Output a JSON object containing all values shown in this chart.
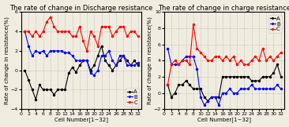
{
  "discharge": {
    "title": "The rate of change in Discharge resistance",
    "x": [
      1,
      2,
      3,
      4,
      5,
      6,
      7,
      8,
      9,
      10,
      11,
      12,
      13,
      14,
      15,
      16,
      17,
      18,
      19,
      20,
      21,
      22,
      23,
      24,
      25,
      26,
      27,
      28,
      29,
      30,
      31,
      32
    ],
    "A": [
      0.0,
      -1.0,
      -2.0,
      -3.0,
      -1.5,
      -2.0,
      -2.0,
      -2.0,
      -2.5,
      -2.0,
      -2.0,
      -2.0,
      -0.3,
      0.3,
      -0.2,
      0.5,
      1.0,
      1.0,
      0.0,
      0.5,
      1.5,
      2.5,
      1.0,
      0.5,
      0.0,
      0.5,
      1.0,
      1.5,
      1.0,
      0.5,
      1.0,
      0.5
    ],
    "B": [
      4.0,
      2.5,
      1.5,
      2.0,
      1.8,
      2.0,
      1.5,
      2.0,
      2.0,
      2.0,
      2.0,
      1.8,
      1.8,
      1.5,
      1.0,
      1.0,
      1.0,
      1.0,
      -0.3,
      -0.5,
      0.0,
      1.5,
      1.5,
      2.0,
      1.0,
      0.5,
      1.5,
      1.5,
      0.5,
      0.5,
      0.5,
      0.8
    ],
    "C": [
      4.0,
      4.0,
      3.5,
      4.0,
      3.5,
      4.0,
      5.0,
      5.5,
      4.5,
      4.0,
      4.0,
      4.0,
      4.0,
      3.5,
      3.5,
      4.5,
      3.0,
      2.0,
      4.0,
      3.5,
      2.5,
      4.5,
      4.5,
      4.5,
      3.5,
      4.0,
      4.5,
      4.5,
      3.5,
      4.0,
      4.0,
      3.5
    ],
    "ylabel": "Rate of change in resistance(%)",
    "xlabel": "Cell Number[1~32]",
    "ylim": [
      -4,
      6
    ],
    "yticks": [
      -4,
      -2,
      0,
      2,
      4,
      6
    ],
    "xticks": [
      0,
      2,
      4,
      6,
      8,
      10,
      12,
      14,
      16,
      18,
      20,
      22,
      24,
      26,
      28,
      30,
      32
    ],
    "legend_loc": "lower right"
  },
  "charge": {
    "title": "The rate of change in charge resistance",
    "x": [
      1,
      2,
      3,
      4,
      5,
      6,
      7,
      8,
      9,
      10,
      11,
      12,
      13,
      14,
      15,
      16,
      17,
      18,
      19,
      20,
      21,
      22,
      23,
      24,
      25,
      26,
      27,
      28,
      29,
      30,
      31,
      32
    ],
    "A": [
      1.0,
      -0.5,
      0.0,
      1.0,
      1.0,
      1.5,
      1.0,
      0.5,
      0.5,
      0.5,
      -0.5,
      -1.0,
      -0.5,
      -0.5,
      -0.5,
      2.0,
      2.0,
      2.0,
      2.0,
      2.0,
      2.0,
      2.0,
      2.0,
      1.5,
      1.5,
      1.5,
      2.0,
      2.0,
      2.0,
      2.5,
      3.5,
      2.0
    ],
    "B": [
      5.5,
      3.5,
      3.5,
      3.5,
      4.0,
      4.5,
      4.5,
      4.5,
      3.0,
      -0.5,
      -1.5,
      -1.0,
      -0.5,
      -0.5,
      -1.5,
      0.0,
      0.0,
      0.5,
      0.0,
      0.0,
      0.5,
      0.5,
      0.5,
      1.0,
      0.5,
      0.5,
      0.5,
      0.5,
      0.5,
      0.5,
      1.0,
      0.5
    ],
    "C": [
      1.0,
      3.5,
      4.0,
      3.5,
      4.0,
      4.0,
      3.5,
      8.5,
      5.5,
      5.0,
      4.5,
      4.0,
      4.0,
      4.5,
      4.5,
      4.0,
      4.5,
      4.0,
      4.5,
      3.5,
      4.0,
      3.5,
      3.5,
      4.0,
      4.5,
      4.0,
      5.5,
      4.0,
      4.5,
      4.0,
      4.5,
      5.0
    ],
    "ylabel": "Rate of change in resistance(%)",
    "xlabel": "Cell Number[1~32]",
    "ylim": [
      -2,
      10
    ],
    "yticks": [
      -2,
      0,
      2,
      4,
      6,
      8,
      10
    ],
    "xticks": [
      0,
      2,
      4,
      6,
      8,
      10,
      12,
      14,
      16,
      18,
      20,
      22,
      24,
      26,
      28,
      30,
      32
    ],
    "legend_loc": "upper right"
  },
  "colors": {
    "A": "#000000",
    "B": "#0000ff",
    "C": "#ff0000"
  },
  "marker": "o",
  "markersize": 1.5,
  "linewidth": 0.8,
  "legend_fontsize": 5.0,
  "title_fontsize": 6.0,
  "label_fontsize": 5.0,
  "tick_fontsize": 4.5,
  "background_color": "#f0ede0"
}
